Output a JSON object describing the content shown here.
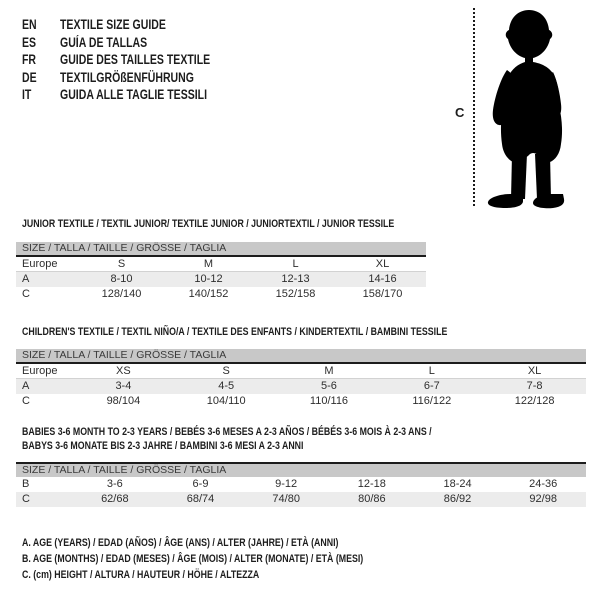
{
  "languages": [
    {
      "code": "EN",
      "label": "TEXTILE SIZE GUIDE"
    },
    {
      "code": "ES",
      "label": "GUÍA DE TALLAS"
    },
    {
      "code": "FR",
      "label": "GUIDE DES TAILLES TEXTILE"
    },
    {
      "code": "DE",
      "label": "TEXTILGRÖßENFÜHRUNG"
    },
    {
      "code": "IT",
      "label": "GUIDA ALLE TAGLIE TESSILI"
    }
  ],
  "figure": {
    "measure_label": "C"
  },
  "tables": [
    {
      "title": "JUNIOR TEXTILE / TEXTIL JUNIOR/ TEXTILE JUNIOR / JUNIORTEXTIL / JUNIOR TESSILE",
      "size_header": "SIZE / TALLA / TAILLE / GRÖSSE / TAGLIA",
      "rows": [
        {
          "label": "Europe",
          "values": [
            "S",
            "M",
            "L",
            "XL"
          ]
        },
        {
          "label": "A",
          "values": [
            "8-10",
            "10-12",
            "12-13",
            "14-16"
          ]
        },
        {
          "label": "C",
          "values": [
            "128/140",
            "140/152",
            "152/158",
            "158/170"
          ]
        }
      ]
    },
    {
      "title": "CHILDREN'S TEXTILE / TEXTIL NIÑO/A / TEXTILE DES ENFANTS / KINDERTEXTIL / BAMBINI TESSILE",
      "size_header": "SIZE / TALLA / TAILLE / GRÖSSE / TAGLIA",
      "rows": [
        {
          "label": "Europe",
          "values": [
            "XS",
            "S",
            "M",
            "L",
            "XL"
          ]
        },
        {
          "label": "A",
          "values": [
            "3-4",
            "4-5",
            "5-6",
            "6-7",
            "7-8"
          ]
        },
        {
          "label": "C",
          "values": [
            "98/104",
            "104/110",
            "110/116",
            "116/122",
            "122/128"
          ]
        }
      ]
    },
    {
      "title": "BABIES 3-6 MONTH TO 2-3 YEARS / BEBÉS 3-6 MESES A 2-3 AÑOS / BÉBÉS 3-6 MOIS À 2-3 ANS /",
      "title_line2": "BABYS 3-6 MONATE BIS 2-3 JAHRE / BAMBINI 3-6 MESI A 2-3 ANNI",
      "size_header": "SIZE / TALLA / TAILLE / GRÖSSE / TAGLIA",
      "rows": [
        {
          "label": "B",
          "values": [
            "3-6",
            "6-9",
            "9-12",
            "12-18",
            "18-24",
            "24-36"
          ]
        },
        {
          "label": "C",
          "values": [
            "62/68",
            "68/74",
            "74/80",
            "80/86",
            "86/92",
            "92/98"
          ]
        }
      ]
    }
  ],
  "footnotes": [
    "A. AGE (YEARS) / EDAD (AÑOS) / ÂGE (ANS) / ALTER (JAHRE) / ETÀ (ANNI)",
    "B. AGE (MONTHS) / EDAD (MESES) / ÂGE (MOIS) / ALTER (MONATE) / ETÀ (MESI)",
    "C. (cm) HEIGHT / ALTURA / HAUTEUR / HÖHE / ALTEZZA"
  ],
  "colors": {
    "header_bar": "#c8c8c8",
    "row_stripe": "#ececec",
    "rule_dark": "#1c1c1c",
    "text": "#1d1d1d",
    "silhouette": "#000000"
  }
}
